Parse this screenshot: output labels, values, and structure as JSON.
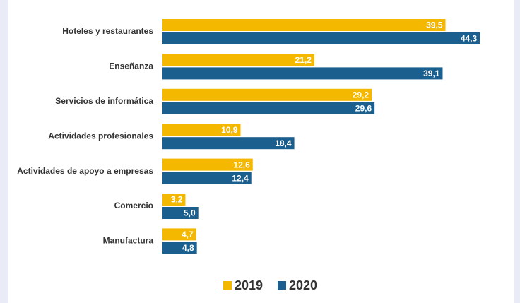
{
  "chart_data": {
    "type": "bar",
    "orientation": "horizontal",
    "categories": [
      "Hoteles y restaurantes",
      "Enseñanza",
      "Servicios de informática",
      "Actividades profesionales",
      "Actividades de apoyo a empresas",
      "Comercio",
      "Manufactura"
    ],
    "series": [
      {
        "name": "2019",
        "color": "#f5b800",
        "values": [
          39.5,
          21.2,
          29.2,
          10.9,
          12.6,
          3.2,
          4.7
        ],
        "value_labels": [
          "39,5",
          "21,2",
          "29,2",
          "10,9",
          "12,6",
          "3,2",
          "4,7"
        ]
      },
      {
        "name": "2020",
        "color": "#1b5f8e",
        "values": [
          44.3,
          39.1,
          29.6,
          18.4,
          12.4,
          5.0,
          4.8
        ],
        "value_labels": [
          "44,3",
          "39,1",
          "29,6",
          "18,4",
          "12,4",
          "5,0",
          "4,8"
        ]
      }
    ],
    "legend": "bottom"
  }
}
